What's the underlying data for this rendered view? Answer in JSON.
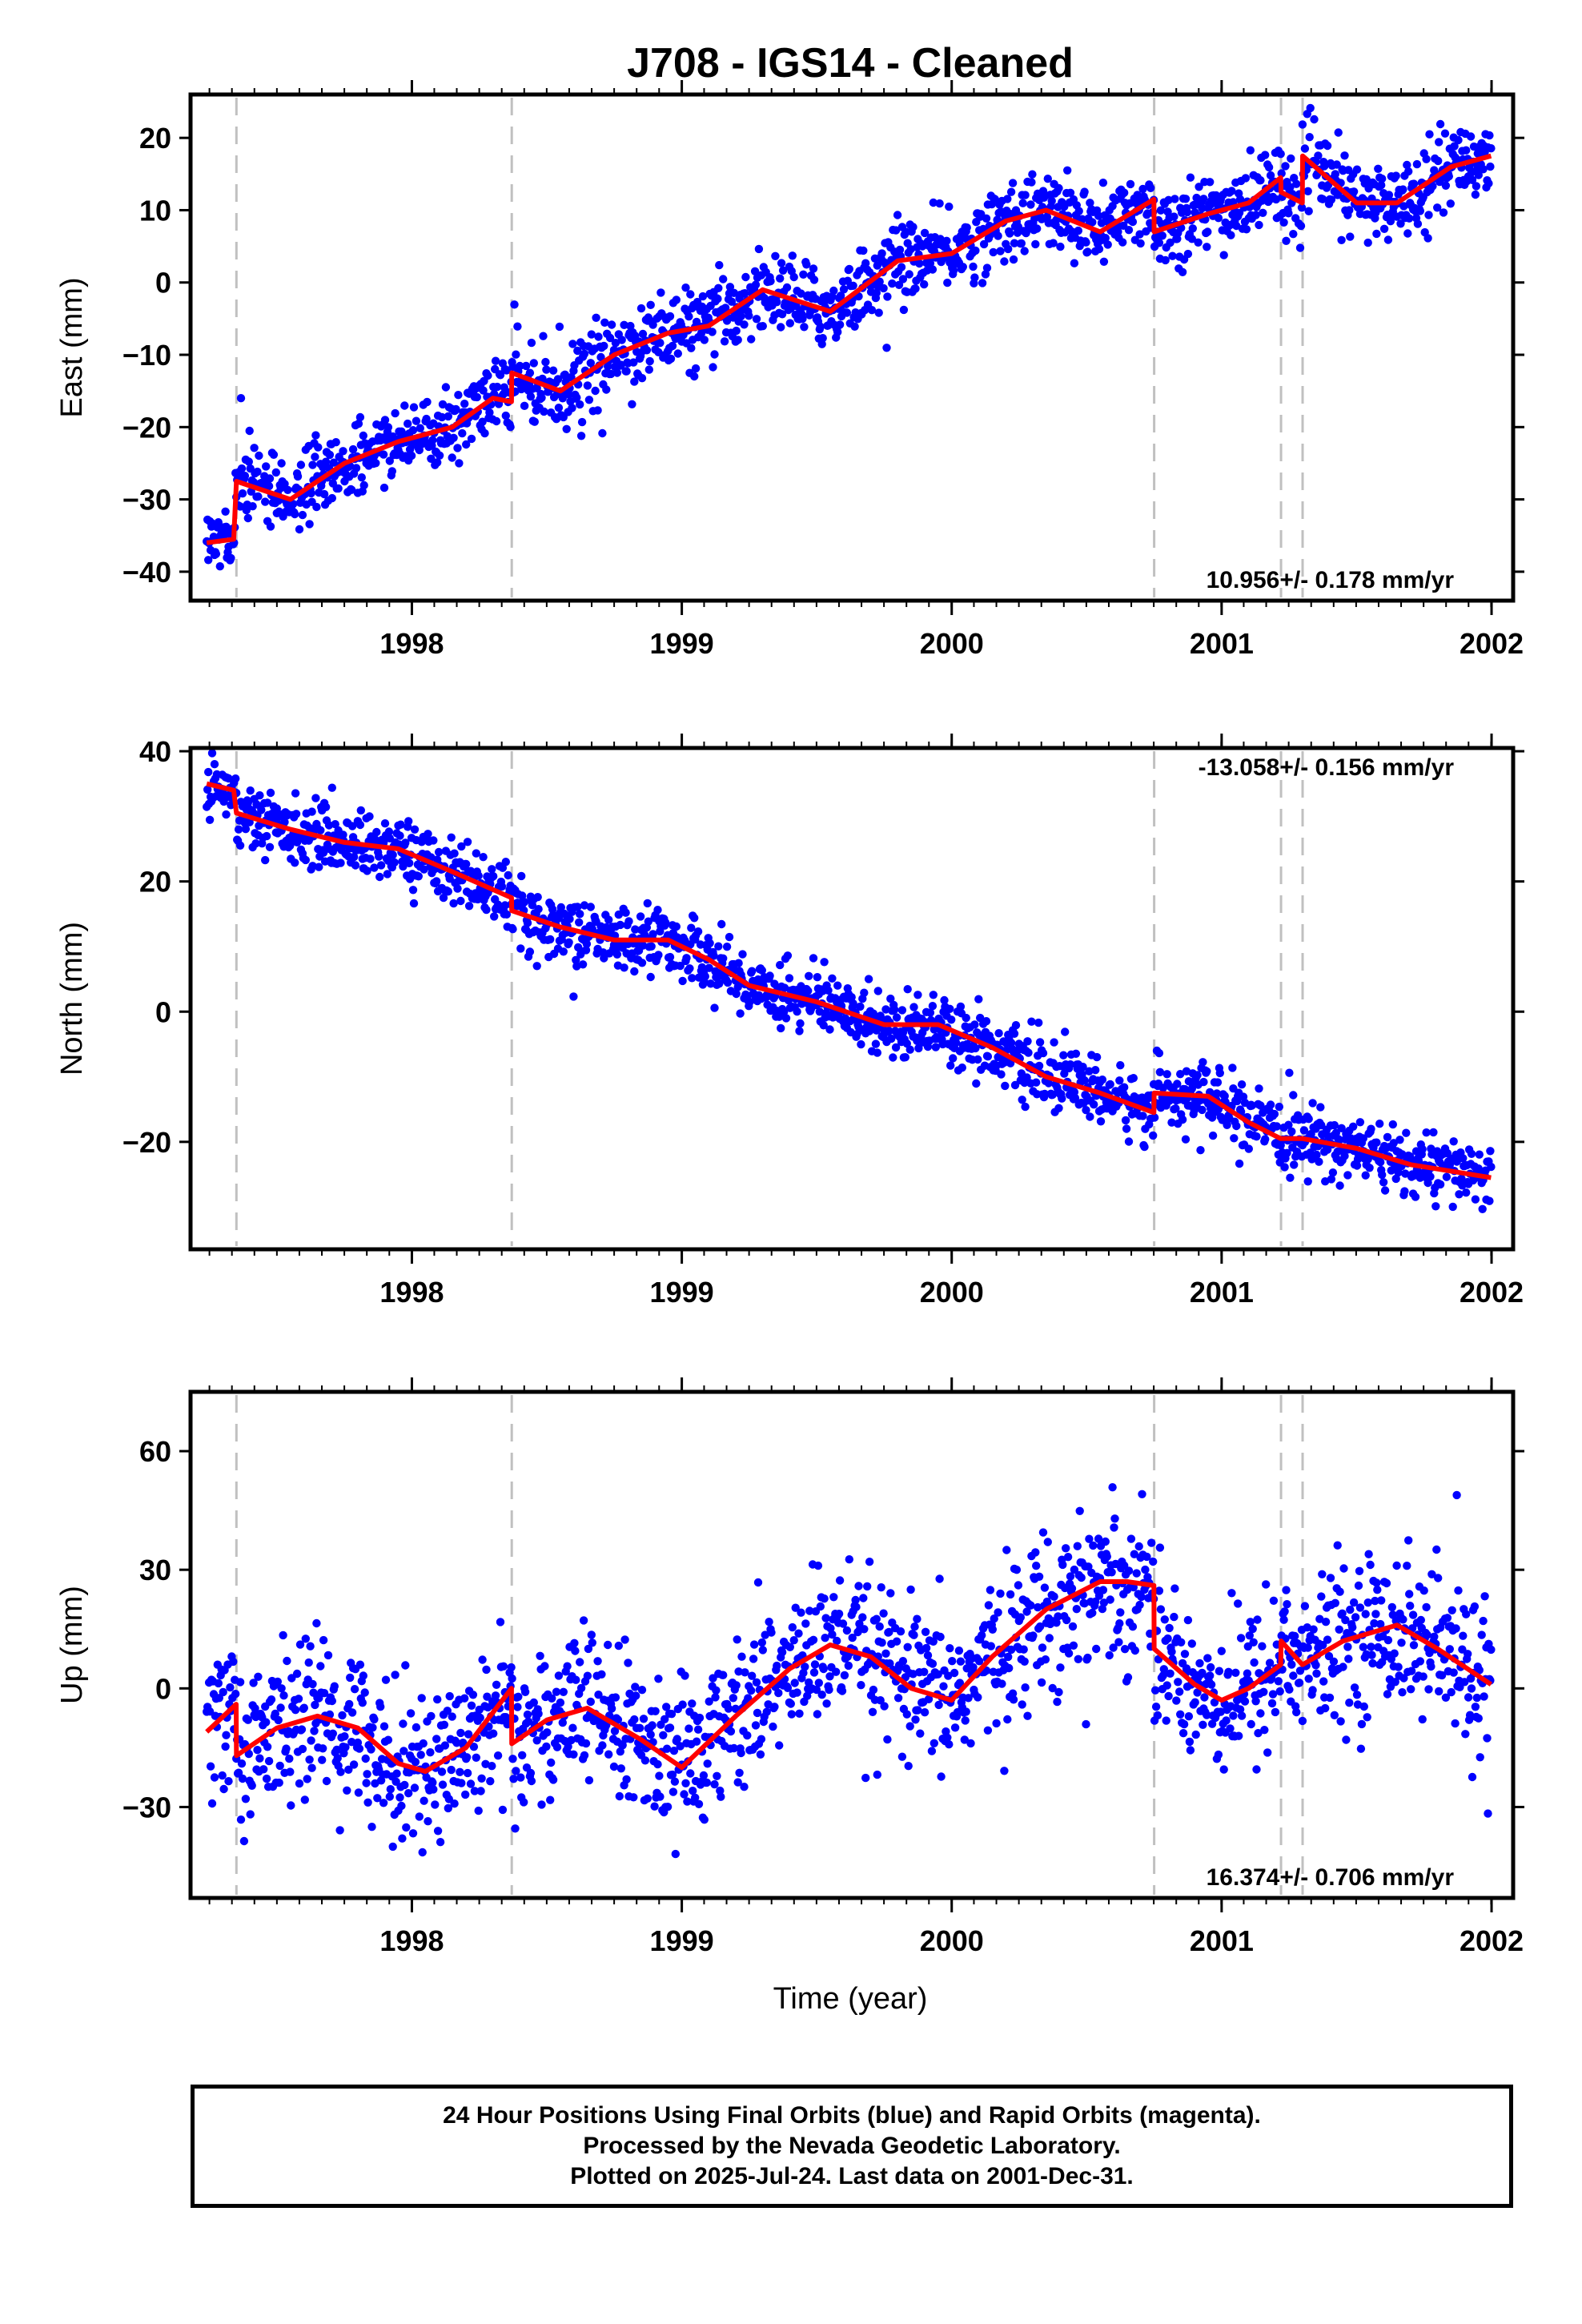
{
  "chart_data": {
    "type": "scatter",
    "title": "J708  - IGS14 - Cleaned",
    "xlabel": "Time (year)",
    "xlim": [
      1997.18,
      2002.08
    ],
    "x_ticks": [
      1998,
      1999,
      2000,
      2001,
      2002
    ],
    "x_tick_labels": [
      "1998",
      "1999",
      "2000",
      "2001",
      "2002"
    ],
    "minor_tick_step_years": 0.0833,
    "data_start": 1997.24,
    "data_end": 2001.998,
    "break_epochs": [
      1997.35,
      1998.37,
      2000.75,
      2001.22,
      2001.3
    ],
    "point_color": "#0000ff",
    "model_color": "#ff0000",
    "break_color": "#c0c0c0",
    "panels": [
      {
        "name": "east",
        "ylabel": "East (mm)",
        "ylim": [
          -44,
          26
        ],
        "y_ticks": [
          -40,
          -30,
          -20,
          -10,
          0,
          10,
          20
        ],
        "y_tick_labels": [
          "−40",
          "−30",
          "−20",
          "−10",
          "0",
          "10",
          "20"
        ],
        "rate_label": "10.956+/- 0.178 mm/yr",
        "rate_position": "bottom-right",
        "noise_mm": 2.6,
        "model_x": [
          1997.24,
          1997.34,
          1997.35,
          1997.55,
          1997.75,
          1997.95,
          1998.15,
          1998.3,
          1998.369,
          1998.37,
          1998.55,
          1998.75,
          1998.95,
          1999.1,
          1999.3,
          1999.55,
          1999.8,
          2000.0,
          2000.2,
          2000.35,
          2000.55,
          2000.749,
          2000.75,
          2000.95,
          2001.1,
          2001.219,
          2001.22,
          2001.299,
          2001.3,
          2001.5,
          2001.65,
          2001.85,
          2001.998
        ],
        "model_y": [
          -36,
          -35.5,
          -27.5,
          -30,
          -25,
          -22,
          -20,
          -16,
          -16.5,
          -12.5,
          -15,
          -10,
          -7,
          -6,
          -1,
          -4,
          3,
          4,
          8.5,
          10,
          7,
          11.5,
          7,
          9.5,
          11,
          14.5,
          12.5,
          11,
          17.5,
          11,
          11,
          16,
          17.5
        ]
      },
      {
        "name": "north",
        "ylabel": "North (mm)",
        "ylim": [
          -36.5,
          40.5
        ],
        "y_ticks": [
          -20,
          0,
          20,
          40
        ],
        "y_tick_labels": [
          "−20",
          "0",
          "20",
          "40"
        ],
        "rate_label": "-13.058+/- 0.156 mm/yr",
        "rate_position": "top-right",
        "noise_mm": 2.4,
        "model_x": [
          1997.24,
          1997.34,
          1997.35,
          1997.55,
          1997.75,
          1997.95,
          1998.15,
          1998.369,
          1998.37,
          1998.55,
          1998.75,
          1998.95,
          1999.1,
          1999.25,
          1999.5,
          1999.75,
          1999.95,
          2000.15,
          2000.35,
          2000.55,
          2000.749,
          2000.75,
          2000.95,
          2001.1,
          2001.219,
          2001.22,
          2001.299,
          2001.3,
          2001.5,
          2001.7,
          2001.85,
          2001.998
        ],
        "model_y": [
          35,
          34,
          30.5,
          28,
          26,
          25,
          21.5,
          17.5,
          15.5,
          13,
          11,
          11,
          8,
          4,
          1.5,
          -2,
          -2,
          -5.5,
          -10,
          -12.5,
          -15.5,
          -12.5,
          -13,
          -17,
          -19.5,
          -19.5,
          -19.5,
          -19.5,
          -21,
          -23.5,
          -24.5,
          -25.5
        ]
      },
      {
        "name": "up",
        "ylabel": "Up (mm)",
        "ylim": [
          -53,
          75
        ],
        "y_ticks": [
          -30,
          0,
          30,
          60
        ],
        "y_tick_labels": [
          "−30",
          "0",
          "30",
          "60"
        ],
        "rate_label": "16.374+/- 0.706 mm/yr",
        "rate_position": "bottom-right",
        "noise_mm": 9.5,
        "model_x": [
          1997.24,
          1997.349,
          1997.35,
          1997.5,
          1997.65,
          1997.8,
          1997.95,
          1998.05,
          1998.2,
          1998.369,
          1998.37,
          1998.5,
          1998.65,
          1998.85,
          1999.0,
          1999.2,
          1999.4,
          1999.55,
          1999.7,
          1999.85,
          2000.0,
          2000.15,
          2000.35,
          2000.55,
          2000.65,
          2000.749,
          2000.75,
          2000.9,
          2001.0,
          2001.1,
          2001.219,
          2001.22,
          2001.299,
          2001.3,
          2001.45,
          2001.65,
          2001.8,
          2001.998
        ],
        "model_y": [
          -11,
          -4,
          -17,
          -10,
          -7,
          -10,
          -19,
          -21,
          -15,
          0,
          -14,
          -8,
          -5,
          -13,
          -20,
          -7,
          5,
          11,
          8,
          0,
          -3,
          8,
          20,
          27,
          27,
          26,
          10,
          1,
          -3,
          0,
          6,
          12,
          6,
          6,
          12,
          16,
          10,
          1
        ]
      }
    ]
  },
  "caption": {
    "line1": "24 Hour Positions Using Final Orbits (blue) and Rapid Orbits (magenta).",
    "line2": "Processed by the Nevada Geodetic Laboratory.",
    "line3": "Plotted on 2025-Jul-24. Last data on 2001-Dec-31."
  }
}
